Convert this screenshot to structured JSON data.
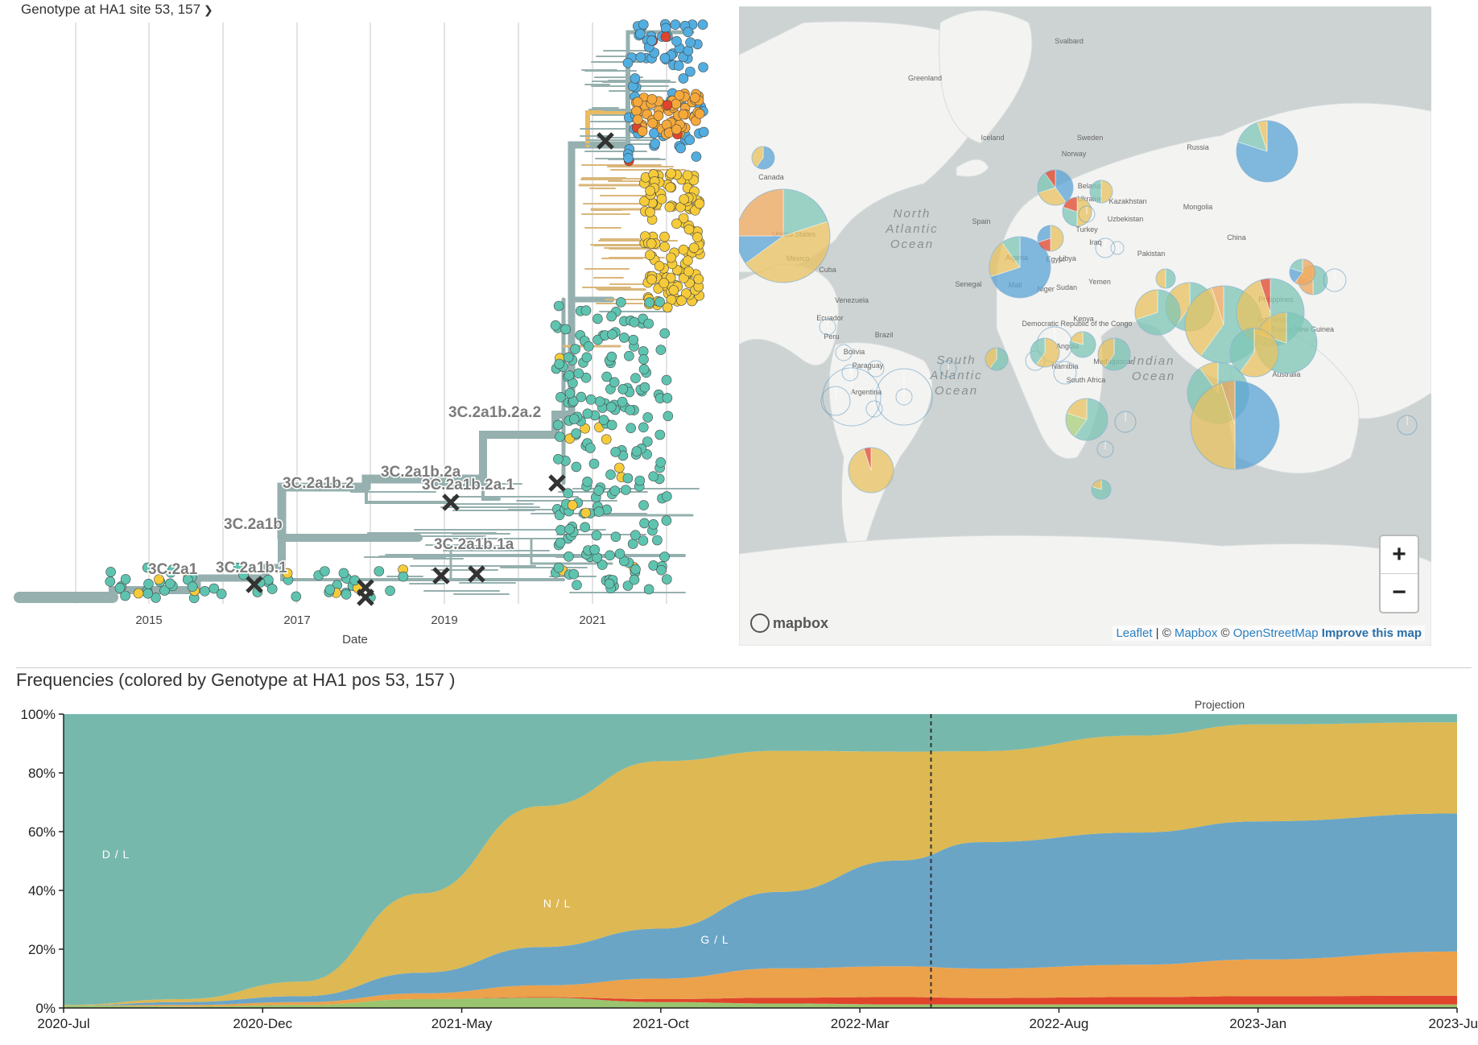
{
  "tree": {
    "header": "Genotype at HA1 site 53, 157",
    "xlabel": "Date",
    "years": [
      "2015",
      "2017",
      "2019",
      "2021"
    ],
    "clade_labels": [
      "3C.2a1",
      "3C.2a1b.1",
      "3C.2a1b",
      "3C.2a1b.2",
      "3C.2a1b.2a",
      "3C.2a1b.2a.1",
      "3C.2a1b.2a.2",
      "3C.2a1b.1a"
    ],
    "colors": {
      "branch": "#95b0ae",
      "teal": "#5ec4b0",
      "blue": "#52aee0",
      "orange": "#f6a93a",
      "yellow": "#f5cb3a",
      "red": "#e0452b",
      "tan": "#d9b77a"
    }
  },
  "map": {
    "places": [
      "Greenland",
      "Svalbard",
      "Iceland",
      "Sweden",
      "Norway",
      "Belarus",
      "Ukraine",
      "Kazakhstan",
      "Uzbekistan",
      "Mongolia",
      "Russia",
      "China",
      "Canada",
      "United States",
      "Mexico",
      "Cuba",
      "Venezuela",
      "Ecuador",
      "Peru",
      "Bolivia",
      "Brazil",
      "Paraguay",
      "Argentina",
      "Spain",
      "Algeria",
      "Libya",
      "Egypt",
      "Turkey",
      "Iraq",
      "Pakistan",
      "Senegal",
      "Mali",
      "Niger",
      "Sudan",
      "Yemen",
      "Democratic Republic of the Congo",
      "Kenya",
      "Angola",
      "Namibia",
      "Madagascar",
      "South Africa",
      "Philippines",
      "Indonesia",
      "Papua New Guinea",
      "Australia"
    ],
    "oceans": [
      "North Atlantic Ocean",
      "South Atlantic Ocean",
      "Indian Ocean"
    ],
    "zoom_in": "+",
    "zoom_out": "−",
    "mapbox_logo": "mapbox",
    "attribution": {
      "leaflet": "Leaflet",
      "sep1": " | © ",
      "mapbox": "Mapbox",
      "sep2": " © ",
      "osm": "OpenStreetMap",
      "improve": "Improve this map"
    }
  },
  "frequencies": {
    "title": "Frequencies (colored by Genotype at HA1 pos 53, 157 )"
  },
  "chart_data": {
    "type": "area",
    "title": "Frequencies (colored by Genotype at HA1 pos 53, 157 )",
    "xlabel": "",
    "ylabel": "",
    "x": [
      "2020-Jul",
      "2020-Oct",
      "2021-Jan",
      "2021-Apr",
      "2021-Jul",
      "2021-Oct",
      "2022-Jan",
      "2022-Apr",
      "2022-Jun",
      "2022-Oct",
      "2023-Jan",
      "2023-Jun"
    ],
    "x_ticks": [
      "2020-Jul",
      "2020-Dec",
      "2021-May",
      "2021-Oct",
      "2022-Mar",
      "2022-Aug",
      "2023-Jan",
      "2023-Jun"
    ],
    "y_ticks": [
      "0%",
      "20%",
      "40%",
      "60%",
      "80%",
      "100%"
    ],
    "ylim": [
      0,
      1
    ],
    "projection_label": "Projection",
    "projection_start": "2022-Jun",
    "stacked": true,
    "series": [
      {
        "name": "",
        "color": "#9ac46d",
        "values": [
          0.008,
          0.005,
          0.01,
          0.03,
          0.035,
          0.02,
          0.015,
          0.012,
          0.012,
          0.012,
          0.012,
          0.012
        ]
      },
      {
        "name": "",
        "color": "#e0452b",
        "values": [
          0.0,
          0.0,
          0.0,
          0.0,
          0.002,
          0.01,
          0.02,
          0.025,
          0.022,
          0.025,
          0.028,
          0.03
        ]
      },
      {
        "name": "",
        "color": "#eba24b",
        "values": [
          0.0,
          0.005,
          0.01,
          0.02,
          0.04,
          0.07,
          0.1,
          0.105,
          0.1,
          0.11,
          0.125,
          0.15
        ]
      },
      {
        "name": "G / L",
        "color": "#6aa5c6",
        "values": [
          0.0,
          0.01,
          0.02,
          0.07,
          0.13,
          0.17,
          0.26,
          0.36,
          0.43,
          0.45,
          0.47,
          0.47
        ]
      },
      {
        "name": "N / L",
        "color": "#ddb853",
        "values": [
          0.002,
          0.01,
          0.05,
          0.27,
          0.48,
          0.57,
          0.48,
          0.37,
          0.31,
          0.33,
          0.33,
          0.31
        ]
      },
      {
        "name": "D / L",
        "color": "#77b8ac",
        "values": [
          0.99,
          0.97,
          0.91,
          0.61,
          0.313,
          0.16,
          0.125,
          0.128,
          0.126,
          0.073,
          0.035,
          0.028
        ]
      }
    ]
  }
}
